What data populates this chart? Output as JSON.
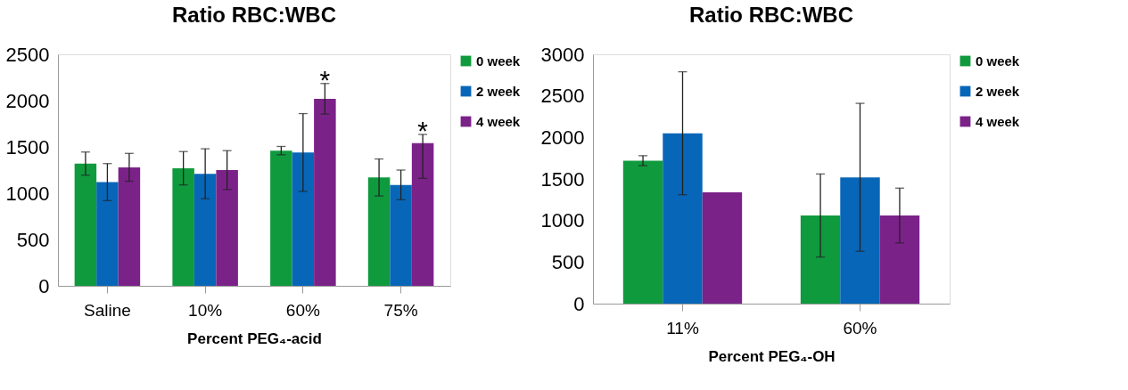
{
  "chart_data": [
    {
      "type": "bar",
      "title": "Ratio RBC:WBC",
      "xlabel": "Percent PEG₄-acid",
      "categories": [
        "Saline",
        "10%",
        "60%",
        "75%"
      ],
      "series": [
        {
          "name": "0 week",
          "color": "#0f9a3e",
          "values": [
            1320,
            1270,
            1460,
            1170
          ],
          "errors": [
            125,
            180,
            45,
            200
          ]
        },
        {
          "name": "2 week",
          "color": "#0866b8",
          "values": [
            1120,
            1210,
            1440,
            1090
          ],
          "errors": [
            200,
            270,
            420,
            160
          ]
        },
        {
          "name": "4 week",
          "color": "#7b2289",
          "values": [
            1280,
            1250,
            2020,
            1540
          ],
          "errors": [
            150,
            210,
            165,
            [
              1160,
              1635
            ]
          ]
        }
      ],
      "ylim": [
        0,
        2500
      ],
      "yticks": [
        0,
        500,
        1000,
        1500,
        2000,
        2500
      ],
      "grid": false,
      "legend": "right",
      "annotations": [
        "*",
        "*"
      ]
    },
    {
      "type": "bar",
      "title": "Ratio RBC:WBC",
      "xlabel": "Percent PEG₄-OH",
      "categories": [
        "11%",
        "60%"
      ],
      "series": [
        {
          "name": "0 week",
          "color": "#0f9a3e",
          "values": [
            1720,
            1060
          ],
          "errors": [
            60,
            500
          ]
        },
        {
          "name": "2 week",
          "color": "#0866b8",
          "values": [
            2050,
            1520
          ],
          "errors": [
            740,
            890
          ]
        },
        {
          "name": "4 week",
          "color": "#7b2289",
          "values": [
            1340,
            1060
          ],
          "errors": [
            null,
            330
          ]
        }
      ],
      "ylim": [
        0,
        3000
      ],
      "yticks": [
        0,
        500,
        1000,
        1500,
        2000,
        2500,
        3000
      ],
      "grid": false,
      "legend": "right"
    }
  ]
}
